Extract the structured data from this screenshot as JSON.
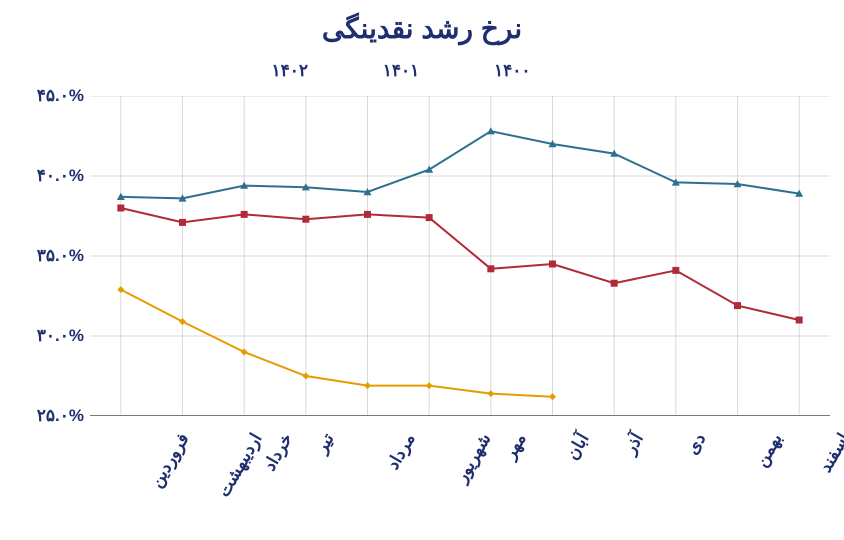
{
  "chart": {
    "type": "line",
    "title": "نرخ رشد نقدینگی",
    "title_fontsize": 28,
    "title_color": "#1f2e6e",
    "background_color": "#ffffff",
    "plot_background": "#ffffff",
    "grid_color": "#d9d9d9",
    "grid_on": true,
    "label_fontsize": 17,
    "axis_label_color": "#1f2e6e",
    "y_axis": {
      "min": 25.0,
      "max": 45.0,
      "tick_step": 5.0,
      "ticks": [
        25.0,
        30.0,
        35.0,
        40.0,
        45.0
      ],
      "tick_labels": [
        "۲۵.۰%",
        "۳۰.۰%",
        "۳۵.۰%",
        "۴۰.۰%",
        "۴۵.۰%"
      ]
    },
    "x_axis": {
      "categories_fa": [
        "فروردین",
        "اردیبهشت",
        "خرداد",
        "تیر",
        "مرداد",
        "شهریور",
        "مهر",
        "آبان",
        "آذر",
        "دی",
        "بهمن",
        "اسفند"
      ],
      "tick_rotation_deg": -60
    },
    "legend": {
      "position": "top-center",
      "items": [
        {
          "key": "s1400",
          "label": "۱۴۰۰"
        },
        {
          "key": "s1401",
          "label": "۱۴۰۱"
        },
        {
          "key": "s1402",
          "label": "۱۴۰۲"
        }
      ]
    },
    "series": {
      "s1400": {
        "label": "۱۴۰۰",
        "color": "#2e6f8e",
        "marker": "triangle",
        "marker_size": 8,
        "line_width": 2,
        "values": [
          38.7,
          38.6,
          39.4,
          39.3,
          39.0,
          40.4,
          42.8,
          42.0,
          41.4,
          39.6,
          39.5,
          38.9
        ]
      },
      "s1401": {
        "label": "۱۴۰۱",
        "color": "#b02a37",
        "marker": "square",
        "marker_size": 7,
        "line_width": 2,
        "values": [
          38.0,
          37.1,
          37.6,
          37.3,
          37.6,
          37.4,
          34.2,
          34.5,
          33.3,
          34.1,
          31.9,
          31.0
        ]
      },
      "s1402": {
        "label": "۱۴۰۲",
        "color": "#e69b00",
        "marker": "diamond",
        "marker_size": 7,
        "line_width": 2,
        "values": [
          32.9,
          30.9,
          29.0,
          27.5,
          26.9,
          26.9,
          26.4,
          26.2
        ]
      }
    }
  }
}
